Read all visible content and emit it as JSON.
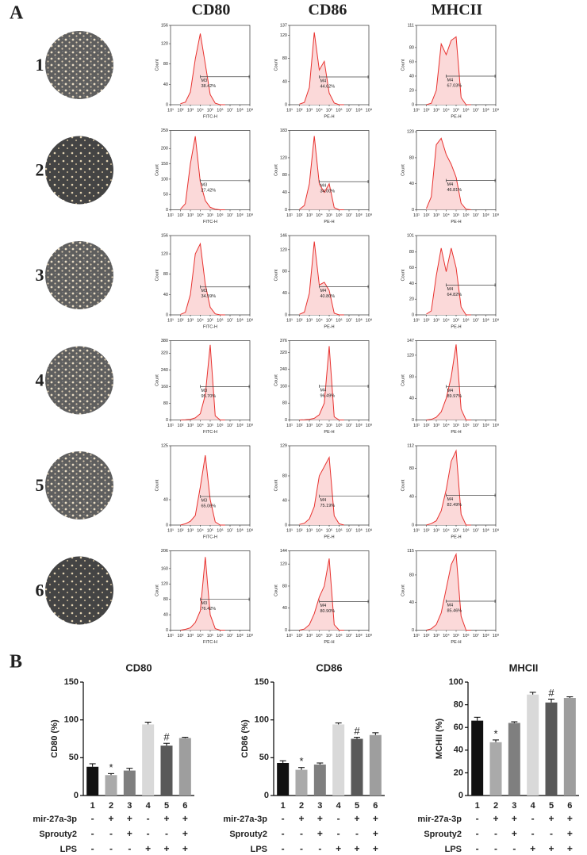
{
  "figure": {
    "panel_a_label": "A",
    "panel_b_label": "B",
    "columns": [
      "CD80",
      "CD86",
      "MHCII"
    ],
    "rows": [
      "1",
      "2",
      "3",
      "4",
      "5",
      "6"
    ],
    "histogram_x_axis": {
      "xlog": true,
      "xlim": [
        10,
        1000000000
      ],
      "xticks": [
        {
          "value": 10,
          "label": "10¹"
        },
        {
          "value": 100,
          "label": "10²"
        },
        {
          "value": 1000,
          "label": "10³"
        },
        {
          "value": 10000,
          "label": "10⁴"
        },
        {
          "value": 100000,
          "label": "10⁵"
        },
        {
          "value": 1000000,
          "label": "10⁶"
        },
        {
          "value": 10000000,
          "label": "10⁷"
        },
        {
          "value": 100000000,
          "label": "10⁸"
        },
        {
          "value": 1000000000,
          "label": "10⁹"
        }
      ],
      "x": [
        100,
        316,
        1000,
        3162,
        10000,
        31623,
        100000,
        316228,
        1000000,
        3162278
      ]
    }
  },
  "chart_data": [
    {
      "type": "area",
      "ylabel": "Count",
      "xlabel": "FITC-H",
      "ylim": [
        0,
        156
      ],
      "yticks": [
        0,
        40,
        80,
        120,
        156
      ],
      "values": [
        2,
        5,
        25,
        90,
        140,
        80,
        20,
        3,
        0,
        0
      ],
      "gate": {
        "name": "M3",
        "label": "38.42%",
        "x": 10000,
        "y": 55
      }
    },
    {
      "type": "area",
      "ylabel": "Count",
      "xlabel": "PE-H",
      "ylim": [
        0,
        137
      ],
      "yticks": [
        0,
        40,
        80,
        120,
        137
      ],
      "values": [
        1,
        4,
        30,
        125,
        60,
        75,
        20,
        3,
        0,
        0
      ],
      "gate": {
        "name": "M4",
        "label": "44.62%",
        "x": 10000,
        "y": 48
      }
    },
    {
      "type": "area",
      "ylabel": "Count",
      "xlabel": "PE-H",
      "ylim": [
        0,
        111
      ],
      "yticks": [
        0,
        20,
        40,
        60,
        80,
        111
      ],
      "values": [
        0,
        2,
        20,
        85,
        70,
        90,
        95,
        10,
        0,
        0
      ],
      "gate": {
        "name": "M4",
        "label": "67.03%",
        "x": 10000,
        "y": 40
      }
    },
    {
      "type": "area",
      "ylabel": "Count",
      "xlabel": "FITC-H",
      "ylim": [
        0,
        259
      ],
      "yticks": [
        0,
        50,
        100,
        150,
        200,
        259
      ],
      "values": [
        2,
        20,
        150,
        240,
        90,
        30,
        8,
        2,
        0,
        0
      ],
      "gate": {
        "name": "M3",
        "label": "27.42%",
        "x": 10000,
        "y": 95
      }
    },
    {
      "type": "area",
      "ylabel": "Count",
      "xlabel": "PE-H",
      "ylim": [
        0,
        183
      ],
      "yticks": [
        0,
        40,
        80,
        120,
        183
      ],
      "values": [
        1,
        10,
        60,
        170,
        60,
        40,
        60,
        5,
        0,
        0
      ],
      "gate": {
        "name": "M4",
        "label": "34.00%",
        "x": 10000,
        "y": 65
      }
    },
    {
      "type": "area",
      "ylabel": "Count",
      "xlabel": "PE-H",
      "ylim": [
        0,
        122
      ],
      "yticks": [
        0,
        40,
        80,
        120
      ],
      "values": [
        2,
        20,
        100,
        110,
        85,
        70,
        50,
        10,
        1,
        0
      ],
      "gate": {
        "name": "M4",
        "label": "46.81%",
        "x": 10000,
        "y": 45
      }
    },
    {
      "type": "area",
      "ylabel": "Count",
      "xlabel": "FITC-H",
      "ylim": [
        0,
        156
      ],
      "yticks": [
        0,
        40,
        80,
        120,
        156
      ],
      "values": [
        1,
        5,
        40,
        120,
        140,
        60,
        15,
        2,
        0,
        0
      ],
      "gate": {
        "name": "M3",
        "label": "34.59%",
        "x": 10000,
        "y": 55
      }
    },
    {
      "type": "area",
      "ylabel": "Count",
      "xlabel": "PE-H",
      "ylim": [
        0,
        146
      ],
      "yticks": [
        0,
        40,
        80,
        120,
        146
      ],
      "values": [
        1,
        5,
        40,
        135,
        55,
        60,
        45,
        3,
        0,
        0
      ],
      "gate": {
        "name": "M4",
        "label": "40.80%",
        "x": 10000,
        "y": 52
      }
    },
    {
      "type": "area",
      "ylabel": "Count",
      "xlabel": "PE-H",
      "ylim": [
        0,
        101
      ],
      "yticks": [
        0,
        20,
        40,
        60,
        80,
        101
      ],
      "values": [
        1,
        5,
        50,
        85,
        55,
        85,
        60,
        10,
        0,
        0
      ],
      "gate": {
        "name": "M4",
        "label": "64.82%",
        "x": 10000,
        "y": 38
      }
    },
    {
      "type": "area",
      "ylabel": "Count",
      "xlabel": "FITC-H",
      "ylim": [
        0,
        380
      ],
      "yticks": [
        0,
        80,
        160,
        240,
        320,
        380
      ],
      "values": [
        0,
        1,
        3,
        10,
        30,
        120,
        360,
        20,
        0,
        0
      ],
      "gate": {
        "name": "M3",
        "label": "95.70%",
        "x": 10000,
        "y": 160
      }
    },
    {
      "type": "area",
      "ylabel": "Count",
      "xlabel": "PE-H",
      "ylim": [
        0,
        376
      ],
      "yticks": [
        0,
        80,
        160,
        240,
        320,
        376
      ],
      "values": [
        0,
        1,
        3,
        8,
        25,
        80,
        350,
        15,
        0,
        0
      ],
      "gate": {
        "name": "M4",
        "label": "96.49%",
        "x": 10000,
        "y": 160
      }
    },
    {
      "type": "area",
      "ylabel": "Count",
      "xlabel": "PE-H",
      "ylim": [
        0,
        147
      ],
      "yticks": [
        0,
        40,
        80,
        120,
        147
      ],
      "values": [
        0,
        1,
        5,
        15,
        40,
        80,
        140,
        20,
        0,
        0
      ],
      "gate": {
        "name": "M4",
        "label": "89.97%",
        "x": 10000,
        "y": 62
      }
    },
    {
      "type": "area",
      "ylabel": "Count",
      "xlabel": "FITC-H",
      "ylim": [
        0,
        125
      ],
      "yticks": [
        0,
        40,
        125
      ],
      "values": [
        0,
        2,
        6,
        15,
        60,
        110,
        40,
        5,
        0,
        0
      ],
      "gate": {
        "name": "M3",
        "label": "65.06%",
        "x": 10000,
        "y": 45
      }
    },
    {
      "type": "area",
      "ylabel": "Count",
      "xlabel": "PE-H",
      "ylim": [
        0,
        129
      ],
      "yticks": [
        0,
        40,
        80,
        129
      ],
      "values": [
        1,
        3,
        10,
        30,
        80,
        95,
        110,
        15,
        2,
        0
      ],
      "gate": {
        "name": "M4",
        "label": "75.19%",
        "x": 10000,
        "y": 47
      }
    },
    {
      "type": "area",
      "ylabel": "Count",
      "xlabel": "PE-H",
      "ylim": [
        0,
        112
      ],
      "yticks": [
        0,
        40,
        80,
        112
      ],
      "values": [
        0,
        2,
        6,
        20,
        50,
        90,
        105,
        15,
        0,
        0
      ],
      "gate": {
        "name": "M4",
        "label": "82.49%",
        "x": 10000,
        "y": 42
      }
    },
    {
      "type": "area",
      "ylabel": "Count",
      "xlabel": "FITC-H",
      "ylim": [
        0,
        206
      ],
      "yticks": [
        0,
        40,
        80,
        120,
        160,
        206
      ],
      "values": [
        0,
        2,
        6,
        20,
        50,
        190,
        40,
        4,
        0,
        0
      ],
      "gate": {
        "name": "M3",
        "label": "76.42%",
        "x": 10000,
        "y": 80
      }
    },
    {
      "type": "area",
      "ylabel": "Count",
      "xlabel": "PE-H",
      "ylim": [
        0,
        144
      ],
      "yticks": [
        0,
        40,
        80,
        120,
        144
      ],
      "values": [
        0,
        2,
        10,
        30,
        60,
        80,
        130,
        10,
        0,
        0
      ],
      "gate": {
        "name": "M4",
        "label": "80.90%",
        "x": 10000,
        "y": 52
      }
    },
    {
      "type": "area",
      "ylabel": "Count",
      "xlabel": "PE-H",
      "ylim": [
        0,
        115
      ],
      "yticks": [
        0,
        40,
        80,
        115
      ],
      "values": [
        0,
        2,
        8,
        25,
        60,
        95,
        110,
        20,
        0,
        0
      ],
      "gate": {
        "name": "M4",
        "label": "85.46%",
        "x": 10000,
        "y": 42
      }
    },
    {
      "type": "bar",
      "title": "CD80",
      "ylabel": "CD80 (%)",
      "categories": [
        "1",
        "2",
        "3",
        "4",
        "5",
        "6"
      ],
      "values": [
        38,
        27,
        33,
        94,
        66,
        76
      ],
      "errors": [
        4,
        2,
        3,
        3,
        3,
        1
      ],
      "annotations": [
        null,
        "*",
        null,
        null,
        "#",
        null
      ],
      "colors": [
        "#111111",
        "#aaaaaa",
        "#7f7f7f",
        "#d9d9d9",
        "#595959",
        "#9e9e9e"
      ],
      "ylim": [
        0,
        150
      ],
      "yticks": [
        0,
        50,
        100,
        150
      ],
      "treatments": [
        {
          "name": "mir-27a-3p",
          "values": [
            "-",
            "+",
            "+",
            "-",
            "+",
            "+"
          ]
        },
        {
          "name": "Sprouty2",
          "values": [
            "-",
            "-",
            "+",
            "-",
            "-",
            "+"
          ]
        },
        {
          "name": "LPS",
          "values": [
            "-",
            "-",
            "-",
            "+",
            "+",
            "+"
          ]
        }
      ]
    },
    {
      "type": "bar",
      "title": "CD86",
      "ylabel": "CD86 (%)",
      "categories": [
        "1",
        "2",
        "3",
        "4",
        "5",
        "6"
      ],
      "values": [
        43,
        34,
        41,
        94,
        75,
        80
      ],
      "errors": [
        3,
        3,
        2,
        2,
        2,
        3
      ],
      "annotations": [
        null,
        "*",
        null,
        null,
        "#",
        null
      ],
      "colors": [
        "#111111",
        "#aaaaaa",
        "#7f7f7f",
        "#d9d9d9",
        "#595959",
        "#9e9e9e"
      ],
      "ylim": [
        0,
        150
      ],
      "yticks": [
        0,
        50,
        100,
        150
      ],
      "treatments": [
        {
          "name": "mir-27a-3p",
          "values": [
            "-",
            "+",
            "+",
            "-",
            "+",
            "+"
          ]
        },
        {
          "name": "Sprouty2",
          "values": [
            "-",
            "-",
            "+",
            "-",
            "-",
            "+"
          ]
        },
        {
          "name": "LPS",
          "values": [
            "-",
            "-",
            "-",
            "+",
            "+",
            "+"
          ]
        }
      ]
    },
    {
      "type": "bar",
      "title": "MHCII",
      "ylabel": "MCHII (%)",
      "categories": [
        "1",
        "2",
        "3",
        "4",
        "5",
        "6"
      ],
      "values": [
        66,
        47,
        64,
        89,
        82,
        86
      ],
      "errors": [
        3,
        2,
        1,
        2,
        3,
        1
      ],
      "annotations": [
        null,
        "*",
        null,
        null,
        "#",
        null
      ],
      "colors": [
        "#111111",
        "#aaaaaa",
        "#7f7f7f",
        "#d9d9d9",
        "#595959",
        "#9e9e9e"
      ],
      "ylim": [
        0,
        100
      ],
      "yticks": [
        0,
        20,
        40,
        60,
        80,
        100
      ],
      "treatments": [
        {
          "name": "mir-27a-3p",
          "values": [
            "-",
            "+",
            "+",
            "-",
            "+",
            "+"
          ]
        },
        {
          "name": "Sprouty2",
          "values": [
            "-",
            "-",
            "+",
            "-",
            "-",
            "+"
          ]
        },
        {
          "name": "LPS",
          "values": [
            "-",
            "-",
            "-",
            "+",
            "+",
            "+"
          ]
        }
      ]
    }
  ]
}
